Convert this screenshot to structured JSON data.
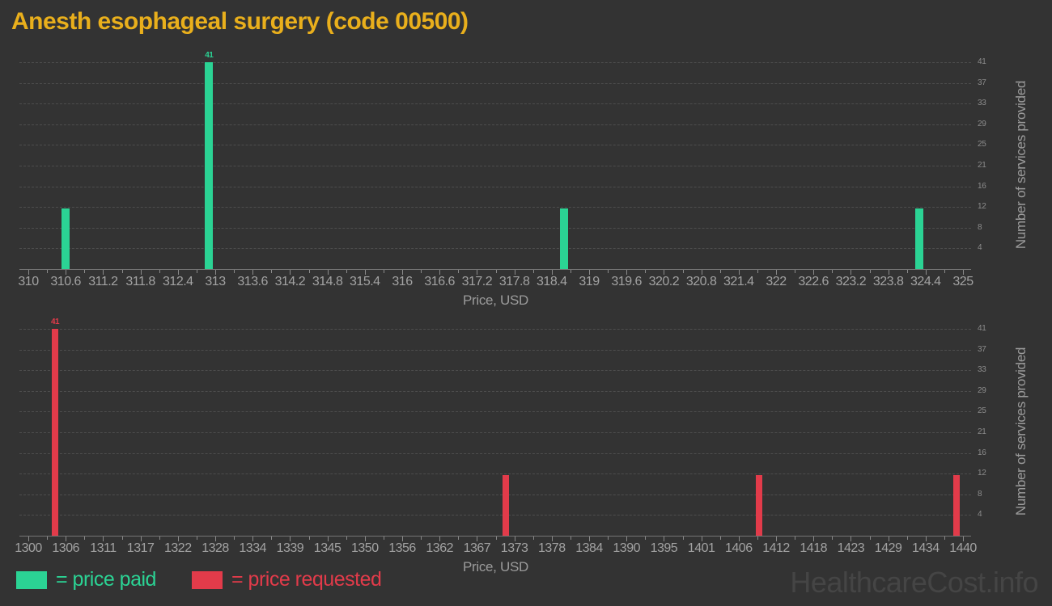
{
  "title": "Anesth esophageal surgery (code 00500)",
  "watermark": "HealthcareCost.info",
  "colors": {
    "background": "#333333",
    "title": "#e9af1c",
    "price_paid": "#2bd394",
    "price_requested": "#e23b4a",
    "x_tick_text": "#a2a2a2",
    "y_tick_text": "#8c8c8c",
    "axis_title_text": "#9b9b9b",
    "grid": "#4d4d4d",
    "watermark": "#454545"
  },
  "legend": {
    "items": [
      {
        "label": "= price paid",
        "series": "price_paid"
      },
      {
        "label": "= price requested",
        "series": "price_requested"
      }
    ]
  },
  "chart_data": [
    {
      "type": "bar",
      "series_name": "price paid",
      "color_key": "price_paid",
      "xlabel": "Price, USD",
      "ylabel": "Number of services provided",
      "x_range": [
        310,
        325
      ],
      "x_tick_labels": [
        "310",
        "310.6",
        "311.2",
        "311.8",
        "312.4",
        "313",
        "313.6",
        "314.2",
        "314.8",
        "315.4",
        "316",
        "316.6",
        "317.2",
        "317.8",
        "318.4",
        "319",
        "319.6",
        "320.2",
        "320.8",
        "321.4",
        "322",
        "322.6",
        "323.2",
        "323.8",
        "324.4",
        "325"
      ],
      "y_tick_labels": [
        "4",
        "8",
        "12",
        "16",
        "21",
        "25",
        "29",
        "33",
        "37",
        "41"
      ],
      "y_grid_step": 4.1,
      "ylim": [
        0,
        41
      ],
      "grid": true,
      "legend_position": "bottom",
      "bars": [
        {
          "x": 310.6,
          "count": 12
        },
        {
          "x": 312.9,
          "count": 41,
          "label": "41"
        },
        {
          "x": 318.6,
          "count": 12
        },
        {
          "x": 324.3,
          "count": 12
        }
      ]
    },
    {
      "type": "bar",
      "series_name": "price requested",
      "color_key": "price_requested",
      "xlabel": "Price, USD",
      "ylabel": "Number of services provided",
      "x_range": [
        1300,
        1440
      ],
      "x_tick_labels": [
        "1300",
        "1306",
        "1311",
        "1317",
        "1322",
        "1328",
        "1334",
        "1339",
        "1345",
        "1350",
        "1356",
        "1362",
        "1367",
        "1373",
        "1378",
        "1384",
        "1390",
        "1395",
        "1401",
        "1406",
        "1412",
        "1418",
        "1423",
        "1429",
        "1434",
        "1440"
      ],
      "y_tick_labels": [
        "4",
        "8",
        "12",
        "16",
        "21",
        "25",
        "29",
        "33",
        "37",
        "41"
      ],
      "y_grid_step": 4.1,
      "ylim": [
        0,
        41
      ],
      "grid": true,
      "legend_position": "bottom",
      "bars": [
        {
          "x": 1304,
          "count": 41,
          "label": "41"
        },
        {
          "x": 1371.5,
          "count": 12
        },
        {
          "x": 1409.5,
          "count": 12
        },
        {
          "x": 1439,
          "count": 12
        }
      ]
    }
  ]
}
